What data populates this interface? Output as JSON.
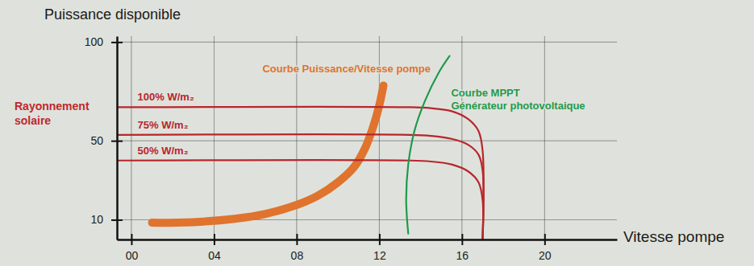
{
  "chart_data": {
    "type": "line",
    "y_label": "Puissance disponible",
    "x_label": "Vitesse pompe",
    "annotations": [
      "Rayonnement\nsolaire"
    ],
    "xlim": [
      -0.7,
      23.5
    ],
    "ylim": [
      0,
      103
    ],
    "xticks": [
      {
        "value": 0,
        "label": "00"
      },
      {
        "value": 4,
        "label": "04"
      },
      {
        "value": 8,
        "label": "08"
      },
      {
        "value": 12,
        "label": "12"
      },
      {
        "value": 16,
        "label": "16"
      },
      {
        "value": 20,
        "label": "20"
      }
    ],
    "yticks": [
      10,
      50,
      100
    ],
    "grid": true,
    "series": [
      {
        "name": "100% W/m₂",
        "color": "#b8262c",
        "x": [
          -0.7,
          13.5,
          14.5,
          15.5,
          16.3,
          16.8,
          17.0,
          17.0
        ],
        "values": [
          67,
          67,
          66.5,
          65,
          61,
          55,
          45,
          0
        ]
      },
      {
        "name": "75% W/m₂",
        "color": "#b8262c",
        "x": [
          -0.7,
          13.5,
          14.5,
          15.5,
          16.3,
          16.8,
          17.0,
          17.0
        ],
        "values": [
          53,
          53,
          52.5,
          51,
          48,
          43,
          35,
          0
        ]
      },
      {
        "name": "50% W/m₂",
        "color": "#b8262c",
        "x": [
          -0.7,
          13.5,
          14.5,
          15.5,
          16.3,
          16.8,
          17.0,
          17.0
        ],
        "values": [
          40,
          40,
          39.5,
          38,
          34.5,
          29,
          20,
          0
        ]
      },
      {
        "name": "Courbe Puissance/Vitesse pompe",
        "color": "#e0732e",
        "x": [
          1.0,
          3.0,
          5.0,
          6.5,
          8.0,
          9.0,
          10.0,
          10.8,
          11.3,
          11.7,
          12.0,
          12.2
        ],
        "values": [
          8.5,
          8.8,
          10.5,
          13,
          17.5,
          22,
          29,
          37,
          46,
          57,
          68,
          78
        ]
      },
      {
        "name": "Courbe MPPT\nGénérateur photovoltaique",
        "color": "#1f9a4c",
        "x": [
          13.4,
          13.3,
          13.4,
          13.7,
          14.2,
          14.9,
          15.4
        ],
        "values": [
          3,
          20,
          38,
          55,
          70,
          85,
          93
        ]
      }
    ]
  }
}
